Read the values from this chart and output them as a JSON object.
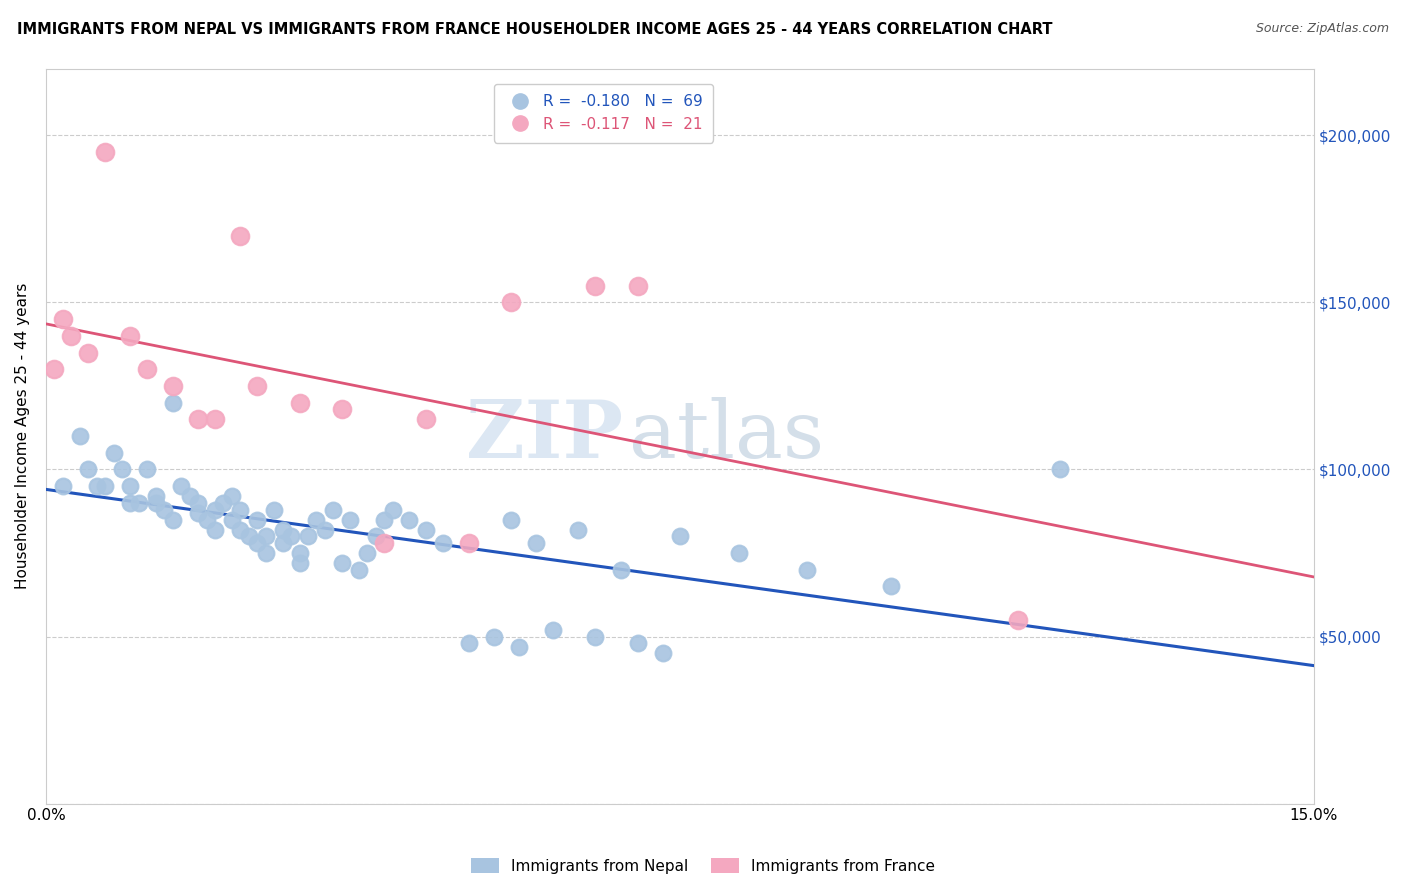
{
  "title": "IMMIGRANTS FROM NEPAL VS IMMIGRANTS FROM FRANCE HOUSEHOLDER INCOME AGES 25 - 44 YEARS CORRELATION CHART",
  "source": "Source: ZipAtlas.com",
  "ylabel": "Householder Income Ages 25 - 44 years",
  "xlim": [
    0.0,
    0.15
  ],
  "ylim": [
    0,
    220000
  ],
  "yticks": [
    0,
    50000,
    100000,
    150000,
    200000
  ],
  "ytick_labels": [
    "",
    "$50,000",
    "$100,000",
    "$150,000",
    "$200,000"
  ],
  "xticks": [
    0.0,
    0.03,
    0.06,
    0.09,
    0.12,
    0.15
  ],
  "xtick_labels": [
    "0.0%",
    "",
    "",
    "",
    "",
    "15.0%"
  ],
  "nepal_color": "#a8c4e0",
  "france_color": "#f4a8c0",
  "nepal_line_color": "#2255bb",
  "france_line_color": "#dd5577",
  "nepal_R": -0.18,
  "nepal_N": 69,
  "france_R": -0.117,
  "france_N": 21,
  "watermark_zip": "ZIP",
  "watermark_atlas": "atlas",
  "nepal_x": [
    0.002,
    0.004,
    0.005,
    0.006,
    0.007,
    0.008,
    0.009,
    0.01,
    0.01,
    0.011,
    0.012,
    0.013,
    0.013,
    0.014,
    0.015,
    0.015,
    0.016,
    0.017,
    0.018,
    0.018,
    0.019,
    0.02,
    0.02,
    0.021,
    0.022,
    0.022,
    0.023,
    0.023,
    0.024,
    0.025,
    0.025,
    0.026,
    0.026,
    0.027,
    0.028,
    0.028,
    0.029,
    0.03,
    0.03,
    0.031,
    0.032,
    0.033,
    0.034,
    0.035,
    0.036,
    0.037,
    0.038,
    0.039,
    0.04,
    0.041,
    0.043,
    0.045,
    0.047,
    0.05,
    0.053,
    0.056,
    0.06,
    0.065,
    0.07,
    0.073,
    0.055,
    0.058,
    0.063,
    0.068,
    0.075,
    0.082,
    0.09,
    0.1,
    0.12
  ],
  "nepal_y": [
    95000,
    110000,
    100000,
    95000,
    95000,
    105000,
    100000,
    90000,
    95000,
    90000,
    100000,
    92000,
    90000,
    88000,
    85000,
    120000,
    95000,
    92000,
    90000,
    87000,
    85000,
    82000,
    88000,
    90000,
    85000,
    92000,
    88000,
    82000,
    80000,
    78000,
    85000,
    80000,
    75000,
    88000,
    82000,
    78000,
    80000,
    75000,
    72000,
    80000,
    85000,
    82000,
    88000,
    72000,
    85000,
    70000,
    75000,
    80000,
    85000,
    88000,
    85000,
    82000,
    78000,
    48000,
    50000,
    47000,
    52000,
    50000,
    48000,
    45000,
    85000,
    78000,
    82000,
    70000,
    80000,
    75000,
    70000,
    65000,
    100000
  ],
  "france_x": [
    0.001,
    0.002,
    0.003,
    0.005,
    0.007,
    0.01,
    0.012,
    0.015,
    0.018,
    0.02,
    0.023,
    0.025,
    0.03,
    0.035,
    0.04,
    0.045,
    0.05,
    0.055,
    0.065,
    0.07,
    0.115
  ],
  "france_y": [
    130000,
    145000,
    140000,
    135000,
    195000,
    140000,
    130000,
    125000,
    115000,
    115000,
    170000,
    125000,
    120000,
    118000,
    78000,
    115000,
    78000,
    150000,
    155000,
    155000,
    55000
  ]
}
